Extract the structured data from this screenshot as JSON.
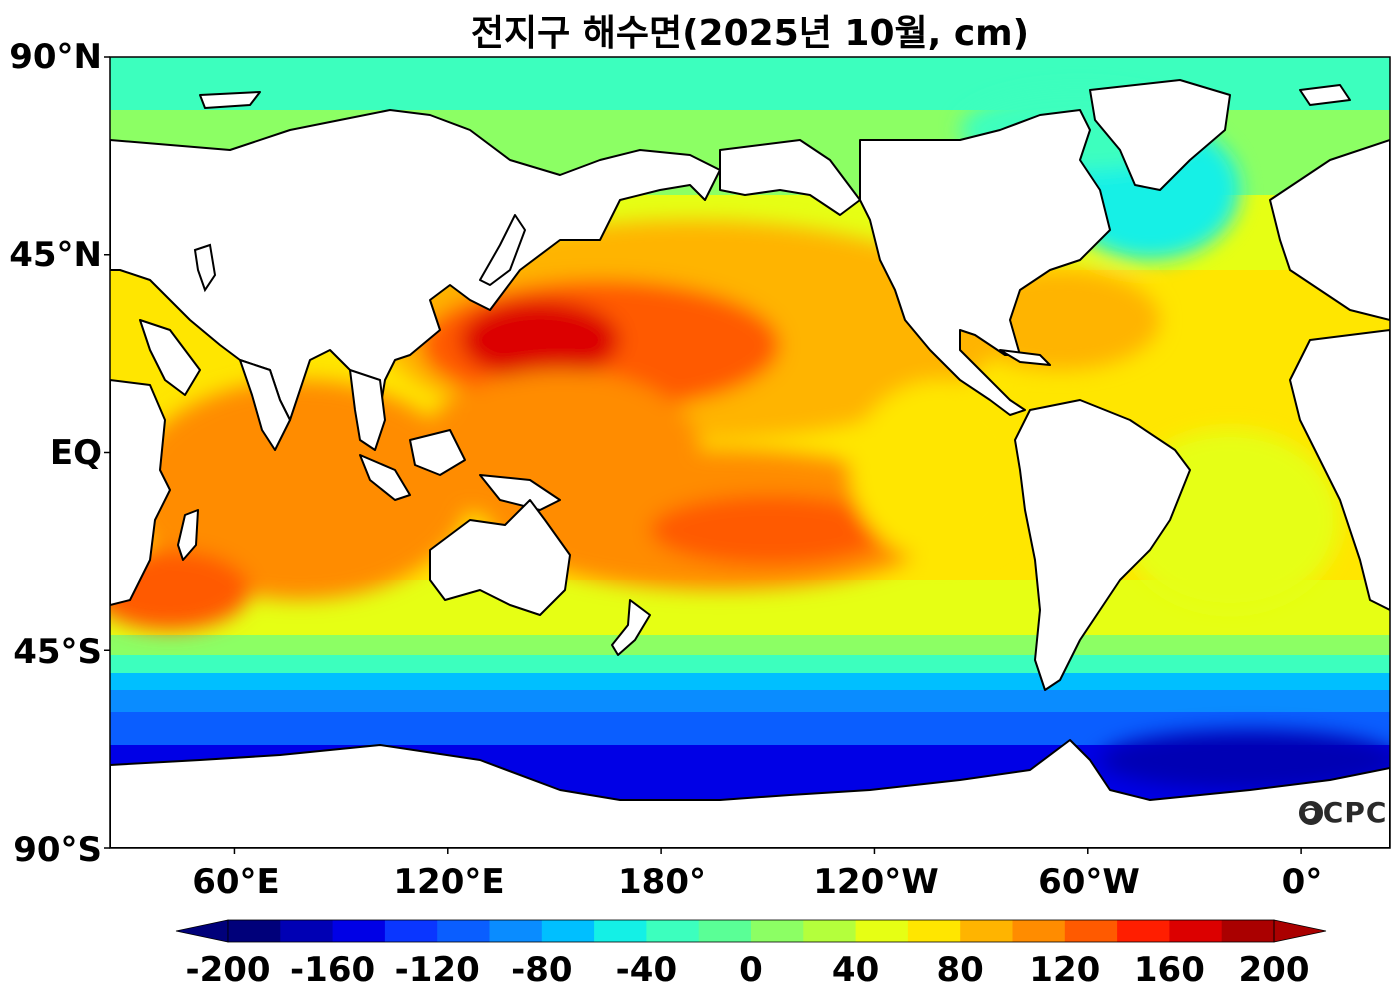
{
  "title": "전지구 해수면(2025년 10월, cm)",
  "lat_labels": [
    "90°N",
    "45°N",
    "EQ",
    "45°S",
    "90°S"
  ],
  "lon_labels": [
    "60°E",
    "120°E",
    "180°",
    "120°W",
    "60°W",
    "0°"
  ],
  "colorbar": {
    "tick_labels": [
      "-200",
      "-160",
      "-120",
      "-80",
      "-40",
      "0",
      "40",
      "80",
      "120",
      "160",
      "200"
    ],
    "colors": [
      "#00007a",
      "#0000b4",
      "#0000e6",
      "#0a36ff",
      "#0a5eff",
      "#0a8cff",
      "#00bfff",
      "#14f0e6",
      "#3cffbe",
      "#5aff96",
      "#8cff64",
      "#b4ff3c",
      "#e6ff14",
      "#ffe600",
      "#ffb400",
      "#ff8c00",
      "#ff5a00",
      "#ff1e00",
      "#dc0000",
      "#aa0000"
    ],
    "min": -200,
    "max": 200,
    "extend": "both"
  },
  "map": {
    "lat_ticks": [
      90,
      45,
      0,
      -45,
      -90
    ],
    "lon_ticks": [
      60,
      120,
      180,
      -120,
      -60,
      0
    ],
    "lon_range": [
      25,
      385
    ],
    "lat_range": [
      -90,
      90
    ]
  },
  "logo": "OCPC",
  "colors": {
    "land": "#ffffff",
    "coast": "#000000",
    "polar": "#3cffbe",
    "subpolar": "#8cff64",
    "midlat": "#e6ff14",
    "subtropic": "#ffe600",
    "warm": "#ffb400",
    "hot": "#ff8c00",
    "hotter": "#ff5a00",
    "peak": "#ff1e00",
    "max": "#dc0000",
    "southern1": "#0a8cff",
    "southern2": "#0a5eff",
    "southern3": "#0000e6"
  }
}
